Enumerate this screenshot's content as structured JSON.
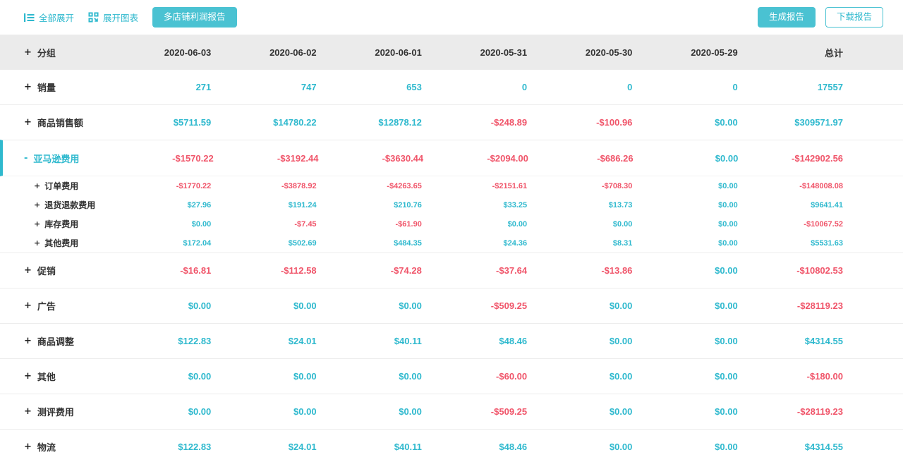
{
  "colors": {
    "accent": "#2fb9ce",
    "accent_button": "#4ac2d2",
    "negative": "#f0556a",
    "header_bg": "#ebebeb",
    "text_dark": "#333333",
    "divider": "#ececec"
  },
  "toolbar": {
    "expand_all": "全部展开",
    "expand_charts": "展开图表",
    "multi_store_report": "多店铺利润报告",
    "generate_report": "生成报告",
    "download_report": "下载报告"
  },
  "table": {
    "group_header": "分组",
    "group_toggle": "+",
    "columns": [
      "2020-06-03",
      "2020-06-02",
      "2020-06-01",
      "2020-05-31",
      "2020-05-30",
      "2020-05-29",
      "总计"
    ],
    "rows": [
      {
        "type": "main",
        "toggle": "+",
        "label": "销量",
        "values": [
          "271",
          "747",
          "653",
          "0",
          "0",
          "0",
          "17557"
        ]
      },
      {
        "type": "main",
        "toggle": "+",
        "label": "商品销售额",
        "values": [
          "$5711.59",
          "$14780.22",
          "$12878.12",
          "-$248.89",
          "-$100.96",
          "$0.00",
          "$309571.97"
        ]
      },
      {
        "type": "main-expanded",
        "toggle": "-",
        "label": "亚马逊费用",
        "values": [
          "-$1570.22",
          "-$3192.44",
          "-$3630.44",
          "-$2094.00",
          "-$686.26",
          "$0.00",
          "-$142902.56"
        ]
      },
      {
        "type": "sub",
        "toggle": "+",
        "label": "订单费用",
        "values": [
          "-$1770.22",
          "-$3878.92",
          "-$4263.65",
          "-$2151.61",
          "-$708.30",
          "$0.00",
          "-$148008.08"
        ]
      },
      {
        "type": "sub",
        "toggle": "+",
        "label": "退货退款费用",
        "values": [
          "$27.96",
          "$191.24",
          "$210.76",
          "$33.25",
          "$13.73",
          "$0.00",
          "$9641.41"
        ]
      },
      {
        "type": "sub",
        "toggle": "+",
        "label": "库存费用",
        "values": [
          "$0.00",
          "-$7.45",
          "-$61.90",
          "$0.00",
          "$0.00",
          "$0.00",
          "-$10067.52"
        ]
      },
      {
        "type": "sub",
        "toggle": "+",
        "label": "其他费用",
        "values": [
          "$172.04",
          "$502.69",
          "$484.35",
          "$24.36",
          "$8.31",
          "$0.00",
          "$5531.63"
        ]
      },
      {
        "type": "main",
        "toggle": "+",
        "label": "促销",
        "values": [
          "-$16.81",
          "-$112.58",
          "-$74.28",
          "-$37.64",
          "-$13.86",
          "$0.00",
          "-$10802.53"
        ]
      },
      {
        "type": "main",
        "toggle": "+",
        "label": "广告",
        "values": [
          "$0.00",
          "$0.00",
          "$0.00",
          "-$509.25",
          "$0.00",
          "$0.00",
          "-$28119.23"
        ]
      },
      {
        "type": "main",
        "toggle": "+",
        "label": "商品调整",
        "values": [
          "$122.83",
          "$24.01",
          "$40.11",
          "$48.46",
          "$0.00",
          "$0.00",
          "$4314.55"
        ]
      },
      {
        "type": "main",
        "toggle": "+",
        "label": "其他",
        "values": [
          "$0.00",
          "$0.00",
          "$0.00",
          "-$60.00",
          "$0.00",
          "$0.00",
          "-$180.00"
        ]
      },
      {
        "type": "main",
        "toggle": "+",
        "label": "测评费用",
        "values": [
          "$0.00",
          "$0.00",
          "$0.00",
          "-$509.25",
          "$0.00",
          "$0.00",
          "-$28119.23"
        ]
      },
      {
        "type": "main",
        "toggle": "+",
        "label": "物流",
        "values": [
          "$122.83",
          "$24.01",
          "$40.11",
          "$48.46",
          "$0.00",
          "$0.00",
          "$4314.55"
        ]
      }
    ]
  }
}
